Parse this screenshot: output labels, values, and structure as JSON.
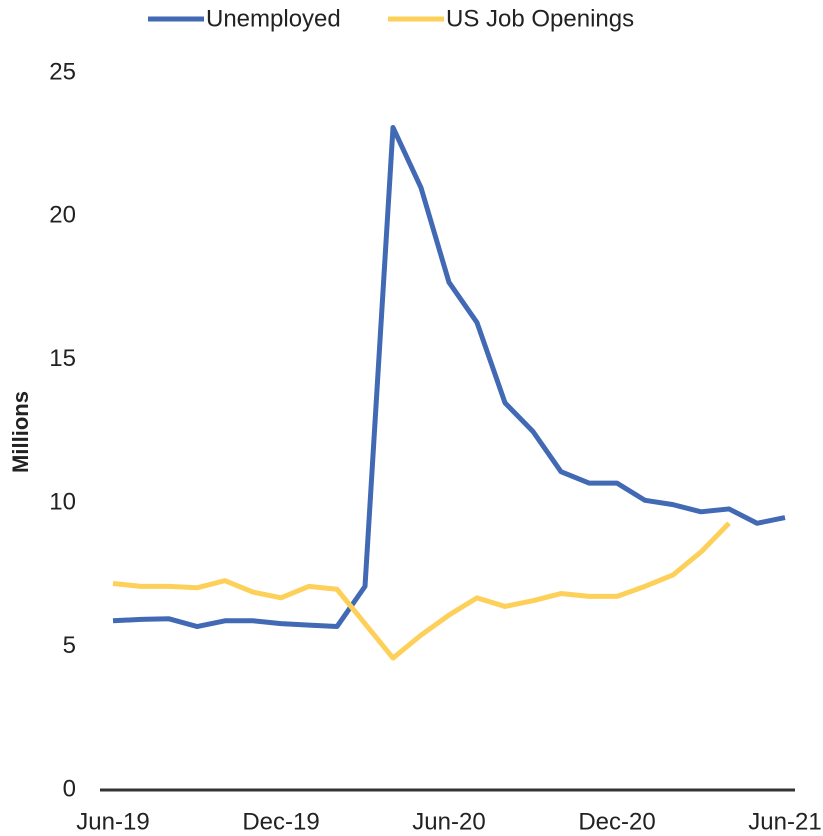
{
  "chart_data": {
    "type": "line",
    "categories": [
      "Jun-19",
      null,
      null,
      null,
      null,
      null,
      "Dec-19",
      null,
      null,
      null,
      null,
      null,
      "Jun-20",
      null,
      null,
      null,
      null,
      null,
      "Dec-20",
      null,
      null,
      null,
      null,
      null,
      "Jun-21"
    ],
    "series": [
      {
        "name": "Unemployed",
        "color": "#4169b4",
        "values": [
          5.9,
          5.95,
          5.97,
          5.7,
          5.9,
          5.9,
          5.8,
          5.75,
          5.7,
          7.1,
          23.1,
          21.0,
          17.7,
          16.3,
          13.5,
          12.5,
          11.1,
          10.7,
          10.7,
          10.1,
          9.95,
          9.7,
          9.8,
          9.3,
          9.5
        ]
      },
      {
        "name": "US Job Openings",
        "color": "#fdd05a",
        "values": [
          7.2,
          7.1,
          7.1,
          7.05,
          7.3,
          6.9,
          6.7,
          7.1,
          7.0,
          5.8,
          4.6,
          5.4,
          6.1,
          6.7,
          6.4,
          6.6,
          6.85,
          6.75,
          6.75,
          7.1,
          7.5,
          8.3,
          9.3,
          null,
          null
        ]
      }
    ],
    "ylabel": "Millions",
    "ylim": [
      0,
      25
    ],
    "yticks": [
      0,
      5,
      10,
      15,
      20,
      25
    ],
    "grid": false,
    "legend": "top"
  }
}
